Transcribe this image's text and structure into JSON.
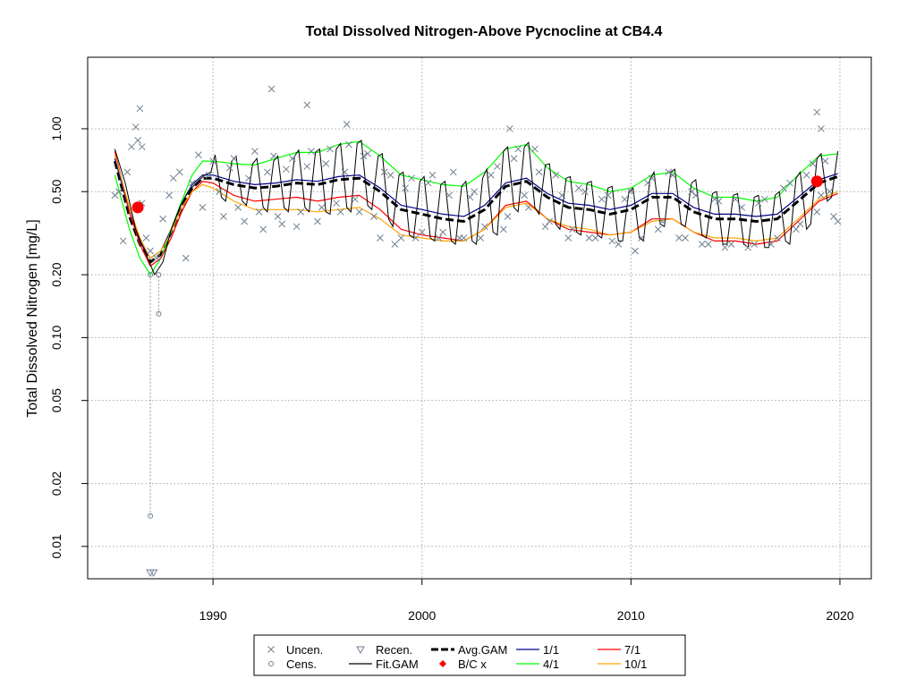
{
  "chart_data": {
    "type": "line",
    "title": "Total Dissolved Nitrogen-Above Pycnocline at CB4.4",
    "xlabel": "",
    "ylabel": "Total Dissolved Nitrogen [mg/L]",
    "xlim": [
      1984,
      2021.5
    ],
    "ylim": [
      0.007,
      2.2
    ],
    "y_scale": "log",
    "grid": true,
    "x_ticks": [
      1990,
      2000,
      2010,
      2020
    ],
    "x_tick_labels": [
      "1990",
      "2000",
      "2010",
      "2020"
    ],
    "y_ticks": [
      0.01,
      0.02,
      0.05,
      0.1,
      0.2,
      0.5,
      1.0
    ],
    "y_tick_labels": [
      "0.01",
      "0.02",
      "0.05",
      "0.10",
      "0.20",
      "0.50",
      "1.00"
    ],
    "legend_position": "bottom",
    "legend": [
      {
        "label": "Uncen.",
        "symbol": "x",
        "color": "#708090"
      },
      {
        "label": "Recen.",
        "symbol": "triangle-down",
        "color": "#708090"
      },
      {
        "label": "Avg.GAM",
        "symbol": "dashed-line",
        "color": "#000000"
      },
      {
        "label": "1/1",
        "symbol": "line",
        "color": "#00008b"
      },
      {
        "label": "7/1",
        "symbol": "line",
        "color": "#ff0000"
      },
      {
        "label": "Cens.",
        "symbol": "circle",
        "color": "#708090"
      },
      {
        "label": "Fit.GAM",
        "symbol": "line",
        "color": "#000000"
      },
      {
        "label": "B/C x",
        "symbol": "diamond",
        "color": "#ff0000"
      },
      {
        "label": "4/1",
        "symbol": "line",
        "color": "#00ff00"
      },
      {
        "label": "10/1",
        "symbol": "line",
        "color": "#ffa500"
      }
    ],
    "colors": {
      "points": "#708090",
      "avg_gam": "#000000",
      "fit_gam": "#000000",
      "jan1": "#00008b",
      "apr1": "#00ff00",
      "jul1": "#ff0000",
      "oct1": "#ffa500",
      "bc": "#ff0000"
    },
    "avg_gam": {
      "x": [
        1985.3,
        1986,
        1986.5,
        1987,
        1987.5,
        1988,
        1988.5,
        1989,
        1989.5,
        1990,
        1991,
        1992,
        1993,
        1994,
        1995,
        1996,
        1997,
        1998,
        1999,
        2000,
        2001,
        2002,
        2003,
        2004,
        2005,
        2006,
        2007,
        2008,
        2009,
        2010,
        2011,
        2012,
        2013,
        2014,
        2015,
        2016,
        2017,
        2018,
        2019,
        2019.9
      ],
      "y": [
        0.7,
        0.38,
        0.28,
        0.23,
        0.25,
        0.32,
        0.42,
        0.52,
        0.58,
        0.58,
        0.54,
        0.52,
        0.53,
        0.55,
        0.54,
        0.57,
        0.58,
        0.5,
        0.41,
        0.39,
        0.37,
        0.36,
        0.41,
        0.53,
        0.56,
        0.47,
        0.42,
        0.41,
        0.39,
        0.41,
        0.47,
        0.47,
        0.4,
        0.37,
        0.37,
        0.36,
        0.37,
        0.45,
        0.55,
        0.59
      ]
    },
    "seasonal_curves": [
      {
        "name": "1/1",
        "color": "#00008b",
        "x": [
          1985.3,
          1986,
          1986.5,
          1987,
          1987.5,
          1988,
          1988.5,
          1989,
          1989.5,
          1990,
          1991,
          1992,
          1993,
          1994,
          1995,
          1996,
          1997,
          1998,
          1999,
          2000,
          2001,
          2002,
          2003,
          2004,
          2005,
          2006,
          2007,
          2008,
          2009,
          2010,
          2011,
          2012,
          2013,
          2014,
          2015,
          2016,
          2017,
          2018,
          2019,
          2019.9
        ],
        "y": [
          0.72,
          0.4,
          0.29,
          0.24,
          0.26,
          0.33,
          0.44,
          0.54,
          0.6,
          0.6,
          0.56,
          0.54,
          0.55,
          0.57,
          0.56,
          0.59,
          0.6,
          0.52,
          0.43,
          0.41,
          0.39,
          0.38,
          0.43,
          0.55,
          0.58,
          0.49,
          0.44,
          0.43,
          0.41,
          0.43,
          0.49,
          0.49,
          0.42,
          0.39,
          0.39,
          0.38,
          0.39,
          0.47,
          0.57,
          0.61
        ]
      },
      {
        "name": "4/1",
        "color": "#00ff00",
        "x": [
          1985.3,
          1986,
          1986.5,
          1987,
          1987.5,
          1988,
          1988.5,
          1989,
          1989.5,
          1990,
          1991,
          1992,
          1993,
          1994,
          1995,
          1996,
          1997,
          1998,
          1999,
          2000,
          2001,
          2002,
          2003,
          2004,
          2005,
          2006,
          2007,
          2008,
          2009,
          2010,
          2011,
          2012,
          2013,
          2014,
          2015,
          2016,
          2017,
          2018,
          2019,
          2019.9
        ],
        "y": [
          0.6,
          0.33,
          0.24,
          0.2,
          0.24,
          0.33,
          0.45,
          0.6,
          0.7,
          0.7,
          0.68,
          0.67,
          0.72,
          0.77,
          0.77,
          0.84,
          0.87,
          0.74,
          0.6,
          0.57,
          0.54,
          0.53,
          0.62,
          0.8,
          0.84,
          0.65,
          0.56,
          0.54,
          0.5,
          0.52,
          0.6,
          0.62,
          0.52,
          0.47,
          0.47,
          0.45,
          0.47,
          0.6,
          0.74,
          0.76
        ]
      },
      {
        "name": "7/1",
        "color": "#ff0000",
        "x": [
          1985.3,
          1986,
          1986.5,
          1987,
          1987.5,
          1988,
          1988.5,
          1989,
          1989.5,
          1990,
          1991,
          1992,
          1993,
          1994,
          1995,
          1996,
          1997,
          1998,
          1999,
          2000,
          2001,
          2002,
          2003,
          2004,
          2005,
          2006,
          2007,
          2008,
          2009,
          2010,
          2011,
          2012,
          2013,
          2014,
          2015,
          2016,
          2017,
          2018,
          2019,
          2019.9
        ],
        "y": [
          0.78,
          0.4,
          0.28,
          0.22,
          0.24,
          0.3,
          0.4,
          0.5,
          0.56,
          0.55,
          0.48,
          0.45,
          0.46,
          0.47,
          0.45,
          0.47,
          0.48,
          0.41,
          0.33,
          0.31,
          0.3,
          0.29,
          0.33,
          0.43,
          0.45,
          0.37,
          0.33,
          0.32,
          0.31,
          0.32,
          0.37,
          0.37,
          0.32,
          0.29,
          0.29,
          0.28,
          0.29,
          0.36,
          0.45,
          0.49
        ]
      },
      {
        "name": "10/1",
        "color": "#ffa500",
        "x": [
          1985.3,
          1986,
          1986.5,
          1987,
          1987.5,
          1988,
          1988.5,
          1989,
          1989.5,
          1990,
          1991,
          1992,
          1993,
          1994,
          1995,
          1996,
          1997,
          1998,
          1999,
          2000,
          2001,
          2002,
          2003,
          2004,
          2005,
          2006,
          2007,
          2008,
          2009,
          2010,
          2011,
          2012,
          2013,
          2014,
          2015,
          2016,
          2017,
          2018,
          2019,
          2019.9
        ],
        "y": [
          0.75,
          0.42,
          0.3,
          0.24,
          0.26,
          0.32,
          0.42,
          0.5,
          0.54,
          0.52,
          0.45,
          0.41,
          0.41,
          0.41,
          0.4,
          0.41,
          0.42,
          0.37,
          0.31,
          0.3,
          0.29,
          0.29,
          0.33,
          0.42,
          0.44,
          0.37,
          0.34,
          0.33,
          0.31,
          0.32,
          0.36,
          0.37,
          0.32,
          0.3,
          0.3,
          0.29,
          0.3,
          0.37,
          0.46,
          0.5
        ]
      }
    ],
    "fit_gam": {
      "x": [
        1985.3,
        1985.8,
        1986.3,
        1986.8,
        1987.2,
        1987.6,
        1988.0,
        1988.4,
        1988.8,
        1989.2,
        1989.6,
        1989.9,
        1990.1,
        1990.4,
        1990.6,
        1990.9,
        1991.1,
        1991.4,
        1991.6,
        1991.9,
        1992.1,
        1992.4,
        1992.6,
        1992.9,
        1993.1,
        1993.4,
        1993.6,
        1993.9,
        1994.1,
        1994.4,
        1994.6,
        1994.9,
        1995.1,
        1995.4,
        1995.6,
        1995.9,
        1996.1,
        1996.4,
        1996.6,
        1996.9,
        1997.1,
        1997.4,
        1997.6,
        1997.9,
        1998.1,
        1998.4,
        1998.6,
        1998.9,
        1999.1,
        1999.4,
        1999.6,
        1999.9,
        2000.1,
        2000.4,
        2000.6,
        2000.9,
        2001.1,
        2001.4,
        2001.6,
        2001.9,
        2002.1,
        2002.4,
        2002.6,
        2002.9,
        2003.1,
        2003.4,
        2003.6,
        2003.9,
        2004.1,
        2004.4,
        2004.6,
        2004.9,
        2005.1,
        2005.4,
        2005.6,
        2005.9,
        2006.1,
        2006.4,
        2006.6,
        2006.9,
        2007.1,
        2007.4,
        2007.6,
        2007.9,
        2008.1,
        2008.4,
        2008.6,
        2008.9,
        2009.1,
        2009.4,
        2009.6,
        2009.9,
        2010.1,
        2010.4,
        2010.6,
        2010.9,
        2011.1,
        2011.4,
        2011.6,
        2011.9,
        2012.1,
        2012.4,
        2012.6,
        2012.9,
        2013.1,
        2013.4,
        2013.6,
        2013.9,
        2014.1,
        2014.4,
        2014.6,
        2014.9,
        2015.1,
        2015.4,
        2015.6,
        2015.9,
        2016.1,
        2016.4,
        2016.6,
        2016.9,
        2017.1,
        2017.4,
        2017.6,
        2017.9,
        2018.1,
        2018.4,
        2018.6,
        2018.9,
        2019.1,
        2019.4,
        2019.6,
        2019.9
      ],
      "y": [
        0.8,
        0.55,
        0.33,
        0.25,
        0.2,
        0.23,
        0.33,
        0.42,
        0.5,
        0.55,
        0.6,
        0.62,
        0.75,
        0.47,
        0.45,
        0.7,
        0.74,
        0.45,
        0.43,
        0.68,
        0.72,
        0.42,
        0.4,
        0.7,
        0.74,
        0.42,
        0.4,
        0.74,
        0.79,
        0.42,
        0.4,
        0.77,
        0.8,
        0.4,
        0.39,
        0.8,
        0.85,
        0.42,
        0.4,
        0.85,
        0.88,
        0.43,
        0.41,
        0.74,
        0.76,
        0.37,
        0.34,
        0.6,
        0.62,
        0.31,
        0.3,
        0.56,
        0.59,
        0.3,
        0.29,
        0.54,
        0.56,
        0.29,
        0.28,
        0.53,
        0.56,
        0.29,
        0.28,
        0.58,
        0.64,
        0.32,
        0.31,
        0.78,
        0.82,
        0.42,
        0.4,
        0.82,
        0.86,
        0.42,
        0.39,
        0.67,
        0.68,
        0.35,
        0.33,
        0.58,
        0.59,
        0.32,
        0.31,
        0.55,
        0.56,
        0.31,
        0.3,
        0.52,
        0.53,
        0.29,
        0.29,
        0.5,
        0.52,
        0.3,
        0.29,
        0.57,
        0.62,
        0.35,
        0.34,
        0.62,
        0.64,
        0.35,
        0.34,
        0.55,
        0.57,
        0.31,
        0.3,
        0.49,
        0.5,
        0.28,
        0.28,
        0.48,
        0.49,
        0.28,
        0.27,
        0.47,
        0.48,
        0.27,
        0.27,
        0.48,
        0.5,
        0.29,
        0.28,
        0.58,
        0.62,
        0.33,
        0.35,
        0.72,
        0.76,
        0.45,
        0.47,
        0.78
      ]
    },
    "bc_points": {
      "x": [
        1986.4,
        2018.9
      ],
      "y": [
        0.42,
        0.56
      ]
    },
    "censored_segments": [
      {
        "x": 1987.0,
        "y_low": 0.014,
        "y_high": 0.2
      },
      {
        "x": 1987.4,
        "y_low": 0.13,
        "y_high": 0.2
      }
    ],
    "recensored_points": {
      "x": [
        1987.0,
        1987.15
      ],
      "y": [
        0.0075,
        0.0075
      ]
    },
    "uncensored_points": {
      "x": [
        1985.3,
        1985.5,
        1985.7,
        1985.9,
        1986.1,
        1986.3,
        1986.4,
        1986.6,
        1986.8,
        1987.0,
        1987.3,
        1987.6,
        1987.9,
        1988.1,
        1988.4,
        1988.7,
        1989.0,
        1989.3,
        1989.5,
        1989.8,
        1990.0,
        1990.3,
        1990.5,
        1990.8,
        1991.0,
        1991.2,
        1991.5,
        1991.7,
        1992.0,
        1992.2,
        1992.4,
        1992.6,
        1992.9,
        1993.1,
        1993.3,
        1993.5,
        1993.8,
        1994.0,
        1994.2,
        1994.5,
        1994.7,
        1995.0,
        1995.2,
        1995.4,
        1995.6,
        1995.9,
        1996.1,
        1996.3,
        1996.5,
        1996.8,
        1997.0,
        1997.2,
        1997.4,
        1997.7,
        1998.0,
        1998.2,
        1998.5,
        1998.7,
        1999.0,
        1999.2,
        1999.5,
        1999.7,
        2000.0,
        2000.3,
        2000.5,
        2000.8,
        2001.0,
        2001.3,
        2001.5,
        2001.8,
        2002.0,
        2002.3,
        2002.5,
        2002.8,
        2003.0,
        2003.3,
        2003.6,
        2003.9,
        2004.1,
        2004.4,
        2004.6,
        2004.9,
        2005.1,
        2005.4,
        2005.6,
        2005.9,
        2006.1,
        2006.4,
        2006.7,
        2007.0,
        2007.2,
        2007.5,
        2007.8,
        2008.0,
        2008.3,
        2008.6,
        2008.9,
        2009.1,
        2009.4,
        2009.7,
        2010.0,
        2010.2,
        2010.5,
        2010.8,
        2011.0,
        2011.3,
        2011.5,
        2011.8,
        2012.0,
        2012.3,
        2012.6,
        2012.9,
        2013.1,
        2013.4,
        2013.7,
        2014.0,
        2014.2,
        2014.5,
        2014.8,
        2015.0,
        2015.3,
        2015.6,
        2015.9,
        2016.1,
        2016.4,
        2016.7,
        2017.0,
        2017.3,
        2017.6,
        2017.9,
        2018.1,
        2018.4,
        2018.7,
        2018.9,
        2019.1,
        2019.3,
        2019.5,
        2019.7,
        2019.9,
        1986.5,
        1986.6,
        1992.8,
        1994.5,
        1996.4,
        2004.2,
        2018.9,
        2019.1
      ],
      "y": [
        0.48,
        0.5,
        0.29,
        0.62,
        0.82,
        1.02,
        0.88,
        0.44,
        0.3,
        0.26,
        0.24,
        0.37,
        0.48,
        0.58,
        0.62,
        0.24,
        0.55,
        0.75,
        0.42,
        0.6,
        0.7,
        0.5,
        0.38,
        0.65,
        0.72,
        0.42,
        0.36,
        0.58,
        0.78,
        0.4,
        0.33,
        0.62,
        0.74,
        0.38,
        0.35,
        0.64,
        0.72,
        0.34,
        0.4,
        0.66,
        0.78,
        0.36,
        0.42,
        0.68,
        0.8,
        0.44,
        0.4,
        0.62,
        0.84,
        0.46,
        0.4,
        0.74,
        0.76,
        0.38,
        0.3,
        0.62,
        0.6,
        0.28,
        0.3,
        0.52,
        0.58,
        0.3,
        0.32,
        0.55,
        0.6,
        0.3,
        0.32,
        0.48,
        0.62,
        0.3,
        0.3,
        0.47,
        0.5,
        0.3,
        0.34,
        0.6,
        0.66,
        0.33,
        0.38,
        0.72,
        0.8,
        0.48,
        0.42,
        0.8,
        0.62,
        0.34,
        0.36,
        0.6,
        0.48,
        0.3,
        0.33,
        0.52,
        0.5,
        0.3,
        0.3,
        0.46,
        0.48,
        0.29,
        0.28,
        0.46,
        0.5,
        0.26,
        0.3,
        0.55,
        0.58,
        0.33,
        0.36,
        0.62,
        0.6,
        0.3,
        0.3,
        0.5,
        0.48,
        0.28,
        0.28,
        0.46,
        0.45,
        0.27,
        0.28,
        0.46,
        0.42,
        0.27,
        0.28,
        0.44,
        0.46,
        0.28,
        0.3,
        0.52,
        0.55,
        0.33,
        0.35,
        0.6,
        0.68,
        0.4,
        0.48,
        0.7,
        0.5,
        0.38,
        0.36,
        1.25,
        0.82,
        1.55,
        1.3,
        1.05,
        1.0,
        1.2,
        1.0
      ]
    }
  }
}
